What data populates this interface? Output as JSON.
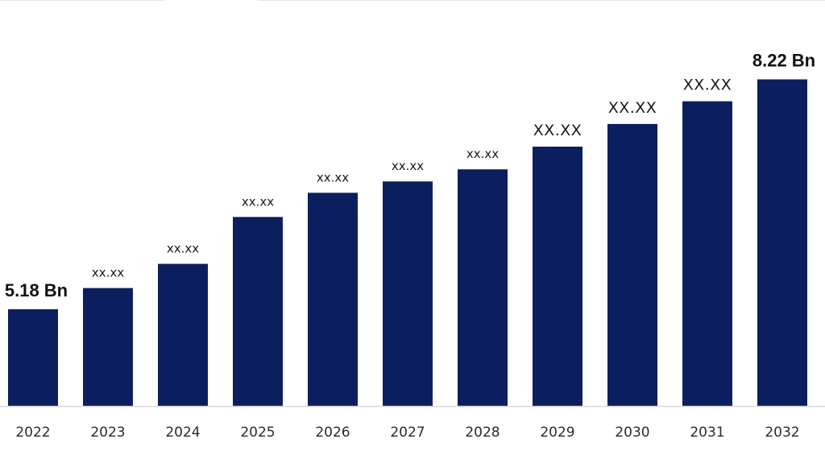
{
  "chart_data": {
    "type": "bar",
    "categories": [
      "2022",
      "2023",
      "2024",
      "2025",
      "2026",
      "2027",
      "2028",
      "2029",
      "2030",
      "2031",
      "2032"
    ],
    "values": [
      5.18,
      5.46,
      5.78,
      6.4,
      6.72,
      6.87,
      7.03,
      7.33,
      7.63,
      7.93,
      8.22
    ],
    "data_labels": [
      "5.18 Bn",
      "xx.xx",
      "xx.xx",
      "xx.xx",
      "xx.xx",
      "xx.xx",
      "xx.xx",
      "XX.XX",
      "XX.XX",
      "XX.XX",
      "8.22 Bn"
    ],
    "title": "",
    "xlabel": "",
    "ylabel": "",
    "ylim": [
      3.9,
      8.95
    ],
    "grid": false,
    "legend": "none",
    "colors": {
      "bar": "#0b1f5e"
    }
  }
}
